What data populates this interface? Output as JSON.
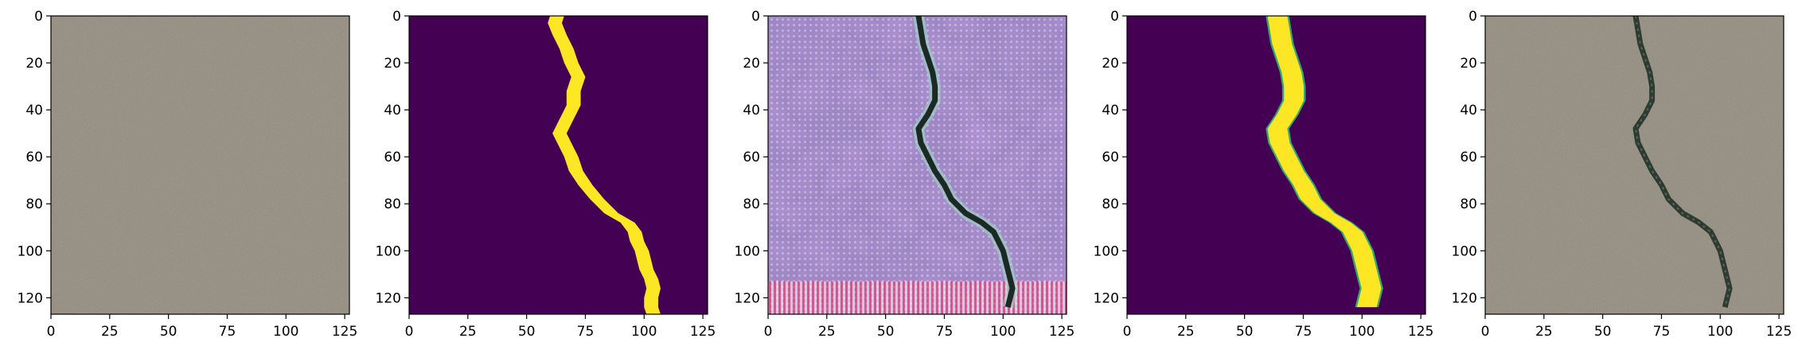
{
  "figure": {
    "panel_count": 5,
    "panels": [
      {
        "content": "concrete surface photo",
        "index": 0
      },
      {
        "content": "crack segmentation mask",
        "index": 1
      },
      {
        "content": "generated crack texture",
        "index": 2
      },
      {
        "content": "smooth crack mask",
        "index": 3
      },
      {
        "content": "synthesized crack on concrete",
        "index": 4
      }
    ]
  },
  "axes": {
    "x_range": [
      0,
      127
    ],
    "y_range": [
      0,
      127
    ],
    "x_ticks": [
      "0",
      "25",
      "50",
      "75",
      "100",
      "125"
    ],
    "y_ticks": [
      "0",
      "20",
      "40",
      "60",
      "80",
      "100",
      "120"
    ],
    "x_tick_values": [
      0,
      25,
      50,
      75,
      100,
      125
    ],
    "y_tick_values": [
      0,
      20,
      40,
      60,
      80,
      100,
      120
    ]
  },
  "colors": {
    "mask_background": "#440154",
    "mask_foreground": "#fde725",
    "concrete": "#8d8678",
    "generated_tint": "#9d86c4",
    "axis": "#000000"
  },
  "crack_path": {
    "mask1_x": [
      [
        0,
        63
      ],
      [
        3,
        62
      ],
      [
        8,
        64
      ],
      [
        14,
        67
      ],
      [
        20,
        69
      ],
      [
        26,
        72
      ],
      [
        32,
        70
      ],
      [
        38,
        70
      ],
      [
        44,
        67
      ],
      [
        50,
        64
      ],
      [
        56,
        67
      ],
      [
        60,
        69
      ],
      [
        66,
        71
      ],
      [
        72,
        75
      ],
      [
        78,
        80
      ],
      [
        84,
        86
      ],
      [
        88,
        93
      ],
      [
        92,
        96
      ],
      [
        96,
        97
      ],
      [
        100,
        99
      ],
      [
        104,
        100
      ],
      [
        108,
        101
      ],
      [
        112,
        103
      ],
      [
        116,
        104
      ],
      [
        120,
        103
      ],
      [
        124,
        103
      ],
      [
        127,
        104
      ]
    ],
    "mask2_x": [
      [
        0,
        64
      ],
      [
        6,
        65
      ],
      [
        12,
        66
      ],
      [
        18,
        68
      ],
      [
        24,
        70
      ],
      [
        30,
        71
      ],
      [
        36,
        71
      ],
      [
        42,
        68
      ],
      [
        48,
        64
      ],
      [
        54,
        65
      ],
      [
        60,
        68
      ],
      [
        66,
        71
      ],
      [
        72,
        75
      ],
      [
        78,
        78
      ],
      [
        84,
        84
      ],
      [
        88,
        91
      ],
      [
        92,
        96
      ],
      [
        96,
        98
      ],
      [
        100,
        100
      ],
      [
        104,
        101
      ],
      [
        108,
        102
      ],
      [
        112,
        103
      ],
      [
        116,
        104
      ],
      [
        120,
        103
      ],
      [
        124,
        102
      ]
    ]
  }
}
